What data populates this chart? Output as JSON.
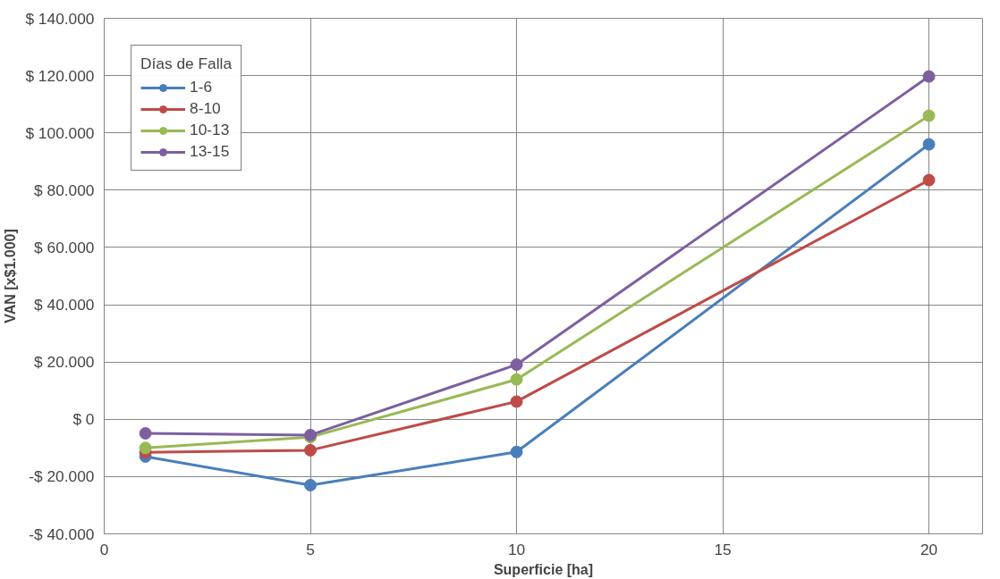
{
  "chart_data": {
    "type": "line",
    "xlabel": "Superficie [ha]",
    "ylabel": "VAN [x$1.000]",
    "legend_title": "Días de Falla",
    "x": [
      1,
      5,
      10,
      20
    ],
    "series": [
      {
        "name": "1-6",
        "color": "#4a7ebb",
        "values": [
          -13000,
          -23000,
          -11400,
          96000
        ]
      },
      {
        "name": "8-10",
        "color": "#be4b48",
        "values": [
          -11500,
          -10800,
          6200,
          83500
        ]
      },
      {
        "name": "10-13",
        "color": "#98b954",
        "values": [
          -10000,
          -6200,
          13900,
          106000
        ]
      },
      {
        "name": "13-15",
        "color": "#7d5fa0",
        "values": [
          -4900,
          -5500,
          19100,
          119700
        ]
      }
    ],
    "xlim": [
      0,
      21.3
    ],
    "xticks": [
      0,
      5,
      10,
      15,
      20
    ],
    "ylim": [
      -40000,
      140000
    ],
    "yticks": [
      {
        "value": -40000,
        "label": "-$ 40.000"
      },
      {
        "value": -20000,
        "label": "-$ 20.000"
      },
      {
        "value": 0,
        "label": "$ 0"
      },
      {
        "value": 20000,
        "label": "$ 20.000"
      },
      {
        "value": 40000,
        "label": "$ 40.000"
      },
      {
        "value": 60000,
        "label": "$ 60.000"
      },
      {
        "value": 80000,
        "label": "$ 80.000"
      },
      {
        "value": 100000,
        "label": "$ 100.000"
      },
      {
        "value": 120000,
        "label": "$ 120.000"
      },
      {
        "value": 140000,
        "label": "$ 140.000"
      }
    ],
    "grid": true,
    "legend": "top left",
    "marker": "circle",
    "line_style": "solid"
  }
}
